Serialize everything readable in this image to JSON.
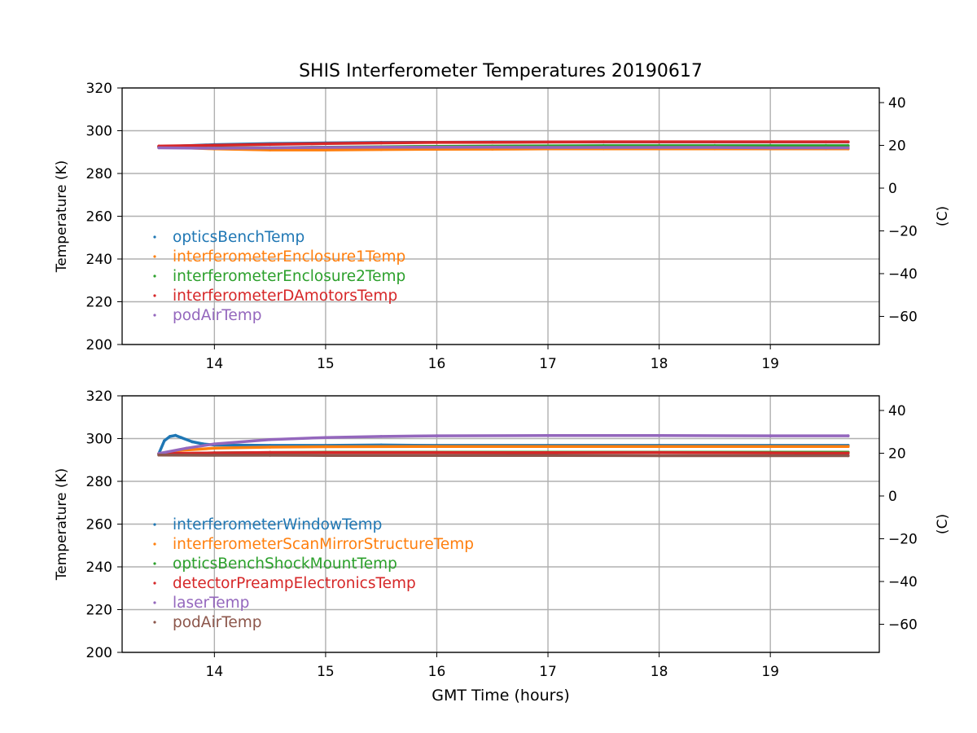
{
  "chart_data": [
    {
      "type": "scatter",
      "title": "SHIS Interferometer Temperatures 20190617",
      "xlabel": "",
      "ylabel": "Temperature (K)",
      "ylabel_right": "(C)",
      "xlim": [
        13.17,
        19.98
      ],
      "ylim": [
        200,
        320
      ],
      "ylim_right": [
        -73.15,
        46.85
      ],
      "x_ticks": [
        14,
        15,
        16,
        17,
        18,
        19
      ],
      "y_ticks": [
        200,
        220,
        240,
        260,
        280,
        300,
        320
      ],
      "y_ticks_right": [
        -60,
        -40,
        -20,
        0,
        20,
        40
      ],
      "grid": true,
      "legend_position": "lower-left",
      "series": [
        {
          "name": "opticsBenchTemp",
          "color": "#1f77b4",
          "x": [
            13.5,
            14.0,
            14.5,
            15.0,
            15.5,
            16.0,
            16.5,
            17.0,
            17.5,
            18.0,
            18.5,
            19.0,
            19.5,
            19.7
          ],
          "y": [
            292.5,
            293.5,
            294.0,
            294.3,
            294.5,
            294.6,
            294.7,
            294.7,
            294.7,
            294.7,
            294.7,
            294.7,
            294.7,
            294.7
          ]
        },
        {
          "name": "interferometerEnclosure1Temp",
          "color": "#ff7f0e",
          "x": [
            13.5,
            14.0,
            14.5,
            15.0,
            15.5,
            16.0,
            16.5,
            17.0,
            17.5,
            18.0,
            18.5,
            19.0,
            19.5,
            19.7
          ],
          "y": [
            292.5,
            291.5,
            291.0,
            291.0,
            291.2,
            291.3,
            291.4,
            291.5,
            291.5,
            291.5,
            291.5,
            291.5,
            291.5,
            291.5
          ]
        },
        {
          "name": "interferometerEnclosure2Temp",
          "color": "#2ca02c",
          "x": [
            13.5,
            14.0,
            14.5,
            15.0,
            15.5,
            16.0,
            16.5,
            17.0,
            17.5,
            18.0,
            18.5,
            19.0,
            19.5,
            19.7
          ],
          "y": [
            292.5,
            292.0,
            292.0,
            292.3,
            292.5,
            292.7,
            292.8,
            292.9,
            293.0,
            293.0,
            293.0,
            293.0,
            293.0,
            293.0
          ]
        },
        {
          "name": "interferometerDAmotorsTemp",
          "color": "#d62728",
          "x": [
            13.5,
            14.0,
            14.5,
            15.0,
            15.5,
            16.0,
            16.5,
            17.0,
            17.5,
            18.0,
            18.5,
            19.0,
            19.5,
            19.7
          ],
          "y": [
            292.8,
            293.2,
            293.6,
            294.0,
            294.3,
            294.5,
            294.6,
            294.7,
            294.8,
            294.8,
            294.8,
            294.8,
            294.8,
            294.8
          ]
        },
        {
          "name": "podAirTemp",
          "color": "#9467bd",
          "x": [
            13.5,
            14.0,
            14.5,
            15.0,
            15.5,
            16.0,
            16.5,
            17.0,
            17.5,
            18.0,
            18.5,
            19.0,
            19.5,
            19.7
          ],
          "y": [
            292.0,
            291.8,
            292.0,
            292.2,
            292.3,
            292.3,
            292.3,
            292.2,
            292.2,
            292.2,
            292.2,
            292.0,
            292.0,
            292.0
          ]
        }
      ]
    },
    {
      "type": "scatter",
      "title": "",
      "xlabel": "GMT Time (hours)",
      "ylabel": "Temperature (K)",
      "ylabel_right": "(C)",
      "xlim": [
        13.17,
        19.98
      ],
      "ylim": [
        200,
        320
      ],
      "ylim_right": [
        -73.15,
        46.85
      ],
      "x_ticks": [
        14,
        15,
        16,
        17,
        18,
        19
      ],
      "y_ticks": [
        200,
        220,
        240,
        260,
        280,
        300,
        320
      ],
      "y_ticks_right": [
        -60,
        -40,
        -20,
        0,
        20,
        40
      ],
      "grid": true,
      "legend_position": "lower-left",
      "series": [
        {
          "name": "interferometerWindowTemp",
          "color": "#1f77b4",
          "x": [
            13.5,
            13.55,
            13.6,
            13.65,
            13.7,
            13.8,
            13.9,
            14.0,
            14.5,
            15.0,
            15.5,
            16.0,
            17.0,
            18.0,
            19.0,
            19.7
          ],
          "y": [
            293.0,
            299.0,
            301.0,
            301.5,
            300.5,
            298.5,
            297.5,
            297.0,
            296.8,
            296.8,
            297.0,
            296.8,
            296.8,
            296.8,
            296.8,
            296.8
          ]
        },
        {
          "name": "interferometerScanMirrorStructureTemp",
          "color": "#ff7f0e",
          "x": [
            13.5,
            13.7,
            14.0,
            14.5,
            15.0,
            16.0,
            17.0,
            18.0,
            19.0,
            19.7
          ],
          "y": [
            293.0,
            294.5,
            295.5,
            296.0,
            296.2,
            296.3,
            296.3,
            296.3,
            296.3,
            296.3
          ]
        },
        {
          "name": "opticsBenchShockMountTemp",
          "color": "#2ca02c",
          "x": [
            13.5,
            14.0,
            14.5,
            15.0,
            16.0,
            17.0,
            18.0,
            19.0,
            19.7
          ],
          "y": [
            292.8,
            293.3,
            293.5,
            293.6,
            293.6,
            293.6,
            293.6,
            293.6,
            293.6
          ]
        },
        {
          "name": "detectorPreampElectronicsTemp",
          "color": "#d62728",
          "x": [
            13.5,
            14.0,
            14.5,
            15.0,
            16.0,
            17.0,
            18.0,
            19.0,
            19.7
          ],
          "y": [
            293.0,
            293.3,
            293.5,
            293.5,
            293.5,
            293.4,
            293.5,
            293.3,
            293.2
          ]
        },
        {
          "name": "laserTemp",
          "color": "#9467bd",
          "x": [
            13.5,
            13.75,
            14.0,
            14.5,
            15.0,
            15.5,
            16.0,
            17.0,
            18.0,
            19.0,
            19.7
          ],
          "y": [
            293.0,
            295.5,
            297.5,
            299.5,
            300.5,
            301.0,
            301.3,
            301.4,
            301.4,
            301.3,
            301.3
          ]
        },
        {
          "name": "podAirTemp",
          "color": "#8c564b",
          "x": [
            13.5,
            14.0,
            14.5,
            15.0,
            16.0,
            17.0,
            18.0,
            19.0,
            19.7
          ],
          "y": [
            292.3,
            292.2,
            292.2,
            292.1,
            292.1,
            292.1,
            292.0,
            292.0,
            292.0
          ]
        }
      ]
    }
  ]
}
